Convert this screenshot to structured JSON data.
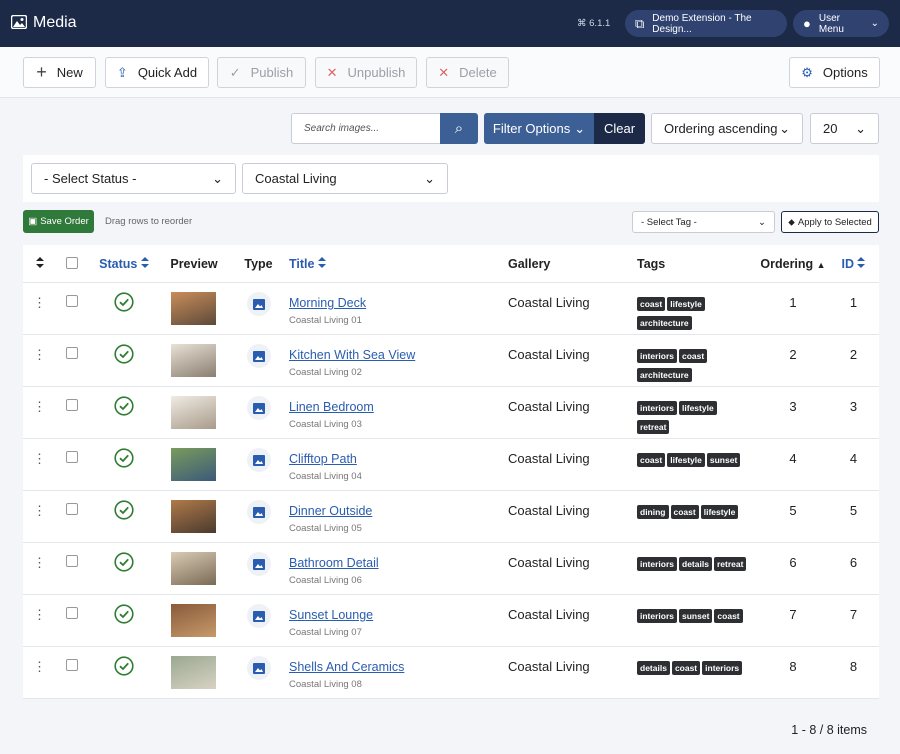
{
  "header": {
    "title": "Media",
    "version": "6.1.1",
    "site": "Demo Extension - The Design...",
    "user": "User Menu"
  },
  "toolbar": {
    "new": "New",
    "quick_add": "Quick Add",
    "publish": "Publish",
    "unpublish": "Unpublish",
    "delete": "Delete",
    "options": "Options"
  },
  "filters": {
    "search_placeholder": "Search images...",
    "filter_options": "Filter Options",
    "clear": "Clear",
    "ordering": "Ordering ascending",
    "limit": 20,
    "status": "- Select Status -",
    "gallery": "Coastal Living"
  },
  "actions": {
    "save_order": "Save Order",
    "drag_hint": "Drag rows to reorder",
    "select_tag": "- Select Tag -",
    "apply": "Apply to Selected"
  },
  "table": {
    "columns": {
      "status": "Status",
      "preview": "Preview",
      "type": "Type",
      "title": "Title",
      "gallery": "Gallery",
      "tags": "Tags",
      "ordering": "Ordering",
      "id": "ID"
    },
    "rows": [
      {
        "title": "Morning Deck",
        "subtitle": "Coastal Living 01",
        "gallery": "Coastal Living",
        "tags": [
          "coast",
          "lifestyle",
          "architecture"
        ],
        "ordering": 1,
        "id": 1
      },
      {
        "title": "Kitchen With Sea View",
        "subtitle": "Coastal Living 02",
        "gallery": "Coastal Living",
        "tags": [
          "interiors",
          "coast",
          "architecture"
        ],
        "ordering": 2,
        "id": 2
      },
      {
        "title": "Linen Bedroom",
        "subtitle": "Coastal Living 03",
        "gallery": "Coastal Living",
        "tags": [
          "interiors",
          "lifestyle",
          "retreat"
        ],
        "ordering": 3,
        "id": 3
      },
      {
        "title": "Clifftop Path",
        "subtitle": "Coastal Living 04",
        "gallery": "Coastal Living",
        "tags": [
          "coast",
          "lifestyle",
          "sunset"
        ],
        "ordering": 4,
        "id": 4
      },
      {
        "title": "Dinner Outside",
        "subtitle": "Coastal Living 05",
        "gallery": "Coastal Living",
        "tags": [
          "dining",
          "coast",
          "lifestyle"
        ],
        "ordering": 5,
        "id": 5
      },
      {
        "title": "Bathroom Detail",
        "subtitle": "Coastal Living 06",
        "gallery": "Coastal Living",
        "tags": [
          "interiors",
          "details",
          "retreat"
        ],
        "ordering": 6,
        "id": 6
      },
      {
        "title": "Sunset Lounge",
        "subtitle": "Coastal Living 07",
        "gallery": "Coastal Living",
        "tags": [
          "interiors",
          "sunset",
          "coast"
        ],
        "ordering": 7,
        "id": 7
      },
      {
        "title": "Shells And Ceramics",
        "subtitle": "Coastal Living 08",
        "gallery": "Coastal Living",
        "tags": [
          "details",
          "coast",
          "interiors"
        ],
        "ordering": 8,
        "id": 8
      }
    ]
  },
  "pagination": "1 - 8 / 8 items"
}
